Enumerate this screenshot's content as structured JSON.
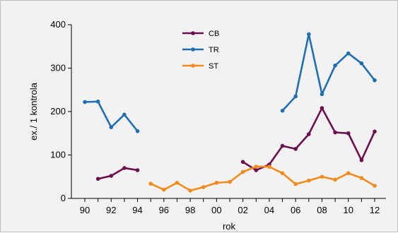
{
  "chart_data": {
    "type": "line",
    "title": "",
    "xlabel": "rok",
    "ylabel": "ex./ 1 kontrola",
    "x": [
      1990,
      1991,
      1992,
      1993,
      1994,
      1995,
      1996,
      1997,
      1998,
      1999,
      2000,
      2001,
      2002,
      2003,
      2004,
      2005,
      2006,
      2007,
      2008,
      2009,
      2010,
      2011,
      2012
    ],
    "x_tick_labels": [
      "90",
      "92",
      "94",
      "96",
      "98",
      "00",
      "02",
      "04",
      "06",
      "08",
      "10",
      "12"
    ],
    "x_tick_years": [
      1990,
      1992,
      1994,
      1996,
      1998,
      2000,
      2002,
      2004,
      2006,
      2008,
      2010,
      2012
    ],
    "y_ticks": [
      0,
      100,
      200,
      300,
      400
    ],
    "ylim": [
      0,
      400
    ],
    "xlim": [
      1990,
      2012
    ],
    "grid": false,
    "legend_position": "top-center",
    "series": [
      {
        "name": "CB",
        "color": "#6b0f4f",
        "values": [
          null,
          45,
          52,
          70,
          65,
          null,
          null,
          null,
          null,
          null,
          null,
          null,
          84,
          65,
          78,
          121,
          114,
          148,
          208,
          152,
          150,
          88,
          154
        ]
      },
      {
        "name": "TR",
        "color": "#1f6fb2",
        "values": [
          222,
          223,
          164,
          193,
          155,
          null,
          null,
          null,
          null,
          null,
          null,
          null,
          null,
          null,
          null,
          202,
          235,
          378,
          240,
          306,
          334,
          311,
          272
        ]
      },
      {
        "name": "ST",
        "color": "#f28a1c",
        "values": [
          null,
          null,
          null,
          null,
          null,
          34,
          20,
          36,
          18,
          26,
          36,
          38,
          61,
          73,
          73,
          58,
          33,
          41,
          50,
          43,
          58,
          47,
          29
        ]
      }
    ]
  }
}
